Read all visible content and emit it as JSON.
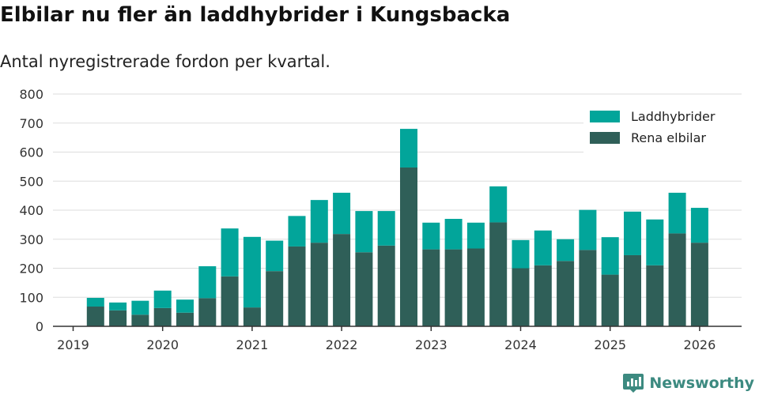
{
  "title": "Elbilar nu fler än laddhybrider i Kungsbacka",
  "subtitle": "Antal nyregistrerade fordon per kvartal.",
  "brand": {
    "name": "Newsworthy",
    "icon": "newsworthy-logo-icon"
  },
  "colors": {
    "phev": "#02a59a",
    "bev": "#2f5f58",
    "grid": "#dddddd",
    "axis": "#333333",
    "brand": "#3c8a80"
  },
  "chart_data": {
    "type": "bar",
    "stacked": true,
    "title": "Elbilar nu fler än laddhybrider i Kungsbacka",
    "subtitle": "Antal nyregistrerade fordon per kvartal.",
    "xlabel": "",
    "ylabel": "",
    "ylim": [
      0,
      800
    ],
    "yticks": [
      "0",
      "100",
      "200",
      "300",
      "400",
      "500",
      "600",
      "700",
      "800"
    ],
    "xticks": [
      "2019",
      "2020",
      "2021",
      "2022",
      "2023",
      "2024",
      "2025",
      "2026"
    ],
    "grid": true,
    "legend_position": "top-right",
    "categories": [
      "2019 Q2",
      "2019 Q3",
      "2019 Q4",
      "2020 Q1",
      "2020 Q2",
      "2020 Q3",
      "2020 Q4",
      "2021 Q1",
      "2021 Q2",
      "2021 Q3",
      "2021 Q4",
      "2022 Q1",
      "2022 Q2",
      "2022 Q3",
      "2022 Q4",
      "2023 Q1",
      "2023 Q2",
      "2023 Q3",
      "2023 Q4",
      "2024 Q1",
      "2024 Q2",
      "2024 Q3",
      "2024 Q4",
      "2025 Q1",
      "2025 Q2",
      "2025 Q3",
      "2025 Q4",
      "2026 Q1"
    ],
    "series": [
      {
        "name": "Rena elbilar",
        "values": [
          68,
          55,
          40,
          63,
          47,
          97,
          172,
          65,
          190,
          275,
          288,
          318,
          255,
          278,
          547,
          265,
          265,
          268,
          358,
          200,
          210,
          225,
          263,
          178,
          245,
          210,
          320,
          288
        ]
      },
      {
        "name": "Laddhybrider",
        "values": [
          30,
          27,
          48,
          60,
          45,
          110,
          165,
          243,
          105,
          105,
          147,
          142,
          142,
          119,
          133,
          92,
          105,
          89,
          124,
          97,
          120,
          75,
          138,
          129,
          150,
          158,
          140,
          120
        ]
      }
    ]
  },
  "legend": {
    "items": [
      {
        "label": "Laddhybrider"
      },
      {
        "label": "Rena elbilar"
      }
    ]
  }
}
